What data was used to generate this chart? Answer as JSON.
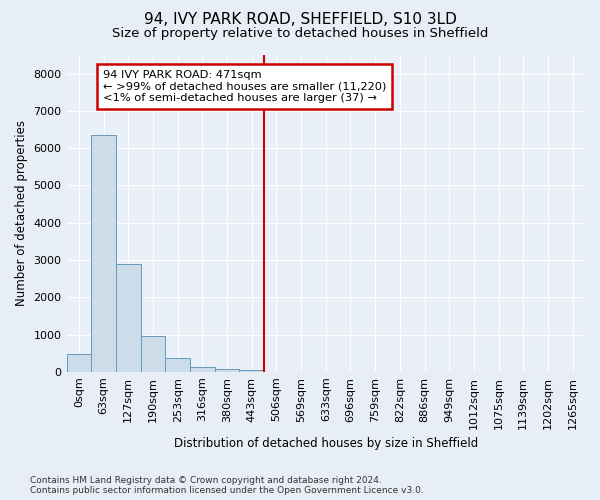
{
  "title": "94, IVY PARK ROAD, SHEFFIELD, S10 3LD",
  "subtitle": "Size of property relative to detached houses in Sheffield",
  "xlabel": "Distribution of detached houses by size in Sheffield",
  "ylabel": "Number of detached properties",
  "footer_line1": "Contains HM Land Registry data © Crown copyright and database right 2024.",
  "footer_line2": "Contains public sector information licensed under the Open Government Licence v3.0.",
  "bar_labels": [
    "0sqm",
    "63sqm",
    "127sqm",
    "190sqm",
    "253sqm",
    "316sqm",
    "380sqm",
    "443sqm",
    "506sqm",
    "569sqm",
    "633sqm",
    "696sqm",
    "759sqm",
    "822sqm",
    "886sqm",
    "949sqm",
    "1012sqm",
    "1075sqm",
    "1139sqm",
    "1202sqm",
    "1265sqm"
  ],
  "bar_values": [
    480,
    6350,
    2900,
    950,
    370,
    140,
    80,
    45,
    0,
    0,
    0,
    0,
    0,
    0,
    0,
    0,
    0,
    0,
    0,
    0,
    0
  ],
  "bar_color": "#ccdce8",
  "bar_edge_color": "#6699bb",
  "vline_x": 7.5,
  "vline_color": "#cc0000",
  "annotation_title": "94 IVY PARK ROAD: 471sqm",
  "annotation_line1": "← >99% of detached houses are smaller (11,220)",
  "annotation_line2": "<1% of semi-detached houses are larger (37) →",
  "annotation_box_color": "#cc0000",
  "ylim": [
    0,
    8500
  ],
  "yticks": [
    0,
    1000,
    2000,
    3000,
    4000,
    5000,
    6000,
    7000,
    8000
  ],
  "bg_color": "#e8eef5",
  "plot_bg_color": "#eaf0f7",
  "grid_color": "#ffffff",
  "title_fontsize": 11,
  "subtitle_fontsize": 9.5,
  "axis_label_fontsize": 8.5,
  "tick_fontsize": 8,
  "footer_fontsize": 6.5
}
